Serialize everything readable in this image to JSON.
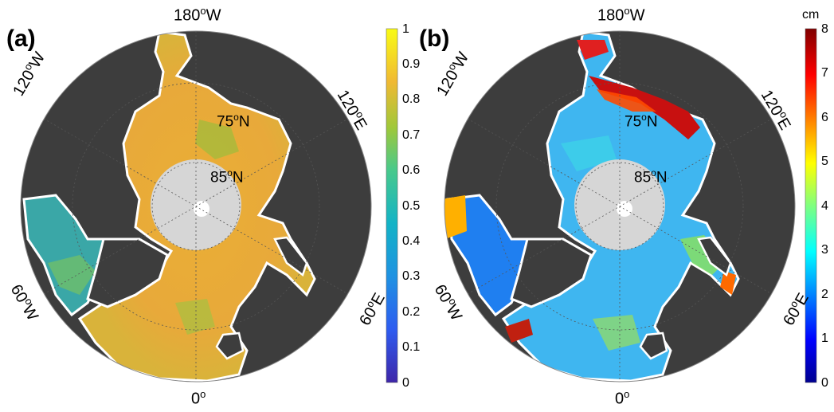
{
  "panels": [
    {
      "label": "(a)",
      "colorbar": {
        "ticks": [
          "1",
          "0.9",
          "0.8",
          "0.7",
          "0.6",
          "0.5",
          "0.4",
          "0.3",
          "0.2",
          "0.1",
          "0"
        ],
        "unit": "",
        "colormap": "parula"
      }
    },
    {
      "label": "(b)",
      "colorbar": {
        "ticks": [
          "8",
          "7",
          "6",
          "5",
          "4",
          "3",
          "2",
          "1",
          "0"
        ],
        "unit": "cm",
        "colormap": "jet"
      }
    }
  ],
  "map": {
    "projection": "north-polar-stereographic",
    "lon_labels": {
      "top": "180",
      "top_left": "120",
      "top_right": "120",
      "bottom_left": "60",
      "bottom_right": "60",
      "bottom": "0"
    },
    "lon_suffix": {
      "top": "W",
      "top_left": "W",
      "top_right": "E",
      "bottom_left": "W",
      "bottom_right": "E",
      "bottom": ""
    },
    "lat_labels": [
      "75",
      "85"
    ],
    "lat_suffix": "N",
    "degree_sign": "o",
    "colors": {
      "land": "#3d3d3d",
      "pole_hole": "#d6d6d6",
      "coast": "#ffffff",
      "frame": "#888888"
    }
  }
}
